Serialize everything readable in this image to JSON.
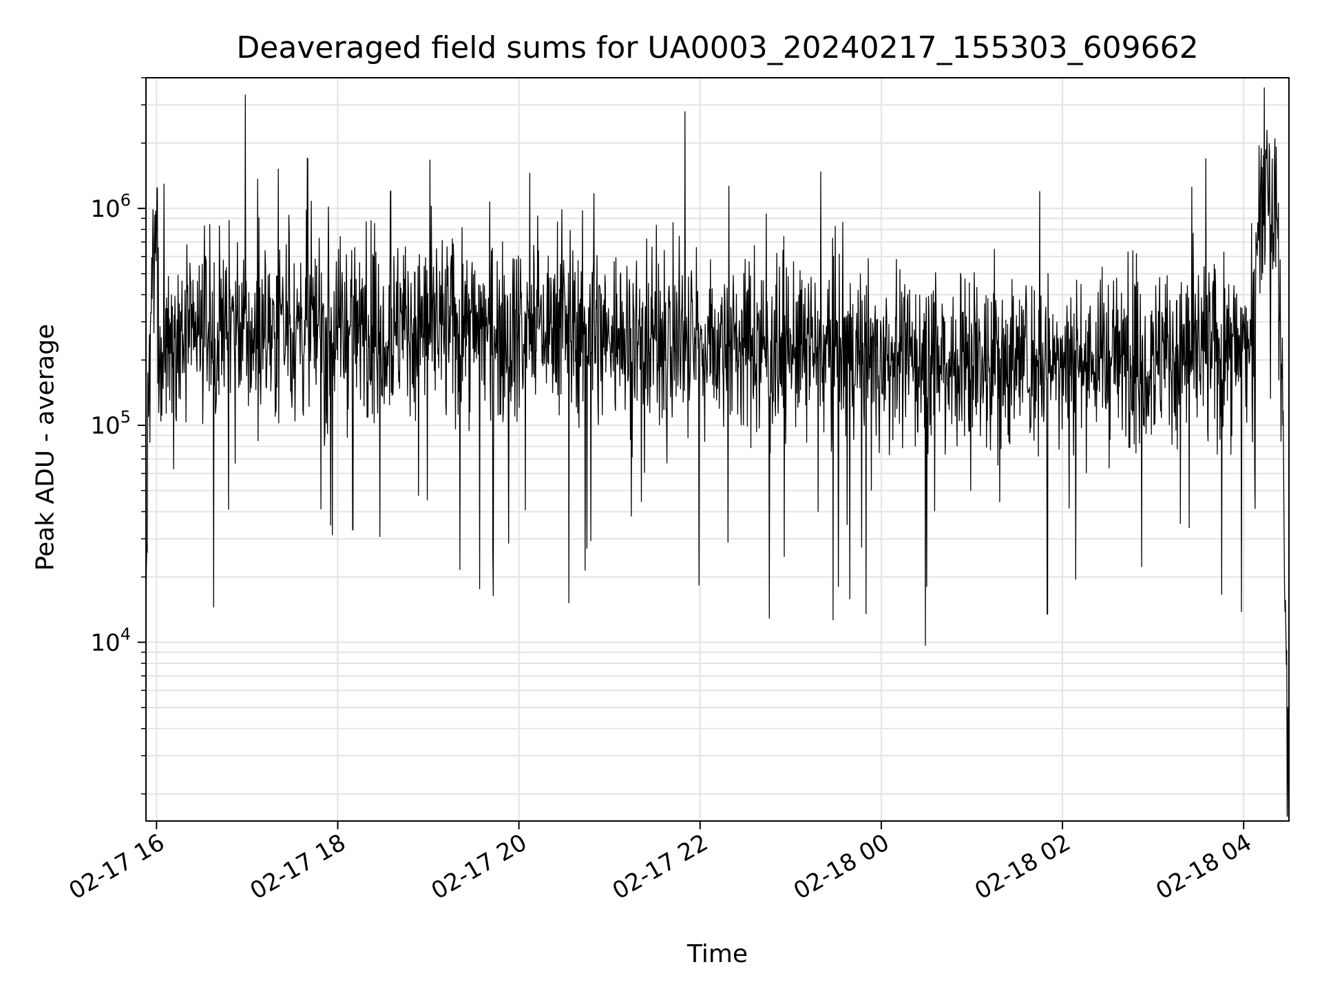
{
  "chart_data": {
    "type": "line",
    "title": "Deaveraged field sums for UA0003_20240217_155303_609662",
    "xlabel": "Time",
    "ylabel": "Peak ADU - average",
    "yscale": "log",
    "grid": true,
    "x_range": [
      "2024-02-17 15:53",
      "2024-02-18 04:30"
    ],
    "ylim": [
      1500,
      4000000
    ],
    "x_tick_labels": [
      "02-17 16",
      "02-17 18",
      "02-17 20",
      "02-17 22",
      "02-18 00",
      "02-18 02",
      "02-18 04"
    ],
    "y_tick_labels": [
      {
        "base": "10",
        "exp": "4"
      },
      {
        "base": "10",
        "exp": "5"
      },
      {
        "base": "10",
        "exp": "6"
      }
    ],
    "line_color": "#000000",
    "series": [
      {
        "values": [
          {
            "x": "2024-02-17 15:53",
            "y": 14000
          },
          {
            "x": "2024-02-17 15:55",
            "y": 200000
          },
          {
            "x": "2024-02-17 16:00",
            "y": 800000
          },
          {
            "x": "2024-02-17 16:05",
            "y": 1300000
          },
          {
            "x": "2024-02-17 16:10",
            "y": 400000
          },
          {
            "x": "2024-02-17 16:30",
            "y": 250000
          },
          {
            "x": "2024-02-17 17:00",
            "y": 220000
          },
          {
            "x": "2024-02-17 17:40",
            "y": 1700000
          },
          {
            "x": "2024-02-17 18:00",
            "y": 200000
          },
          {
            "x": "2024-02-17 18:10",
            "y": 33000
          },
          {
            "x": "2024-02-17 18:35",
            "y": 1200000
          },
          {
            "x": "2024-02-17 19:00",
            "y": 200000
          },
          {
            "x": "2024-02-17 20:00",
            "y": 230000
          },
          {
            "x": "2024-02-17 20:45",
            "y": 27000
          },
          {
            "x": "2024-02-17 21:00",
            "y": 240000
          },
          {
            "x": "2024-02-17 21:50",
            "y": 2800000
          },
          {
            "x": "2024-02-17 22:00",
            "y": 250000
          },
          {
            "x": "2024-02-17 23:00",
            "y": 260000
          },
          {
            "x": "2024-02-17 23:50",
            "y": 13500
          },
          {
            "x": "2024-02-18 00:00",
            "y": 240000
          },
          {
            "x": "2024-02-18 00:30",
            "y": 18000
          },
          {
            "x": "2024-02-18 01:00",
            "y": 250000
          },
          {
            "x": "2024-02-18 01:45",
            "y": 1200000
          },
          {
            "x": "2024-02-18 01:50",
            "y": 13500
          },
          {
            "x": "2024-02-18 02:00",
            "y": 260000
          },
          {
            "x": "2024-02-18 03:00",
            "y": 300000
          },
          {
            "x": "2024-02-18 03:35",
            "y": 1700000
          },
          {
            "x": "2024-02-18 04:00",
            "y": 300000
          },
          {
            "x": "2024-02-18 04:15",
            "y": 1700000
          },
          {
            "x": "2024-02-18 04:22",
            "y": 900000
          },
          {
            "x": "2024-02-18 04:26",
            "y": 100000
          },
          {
            "x": "2024-02-18 04:30",
            "y": 1800
          }
        ]
      }
    ]
  }
}
